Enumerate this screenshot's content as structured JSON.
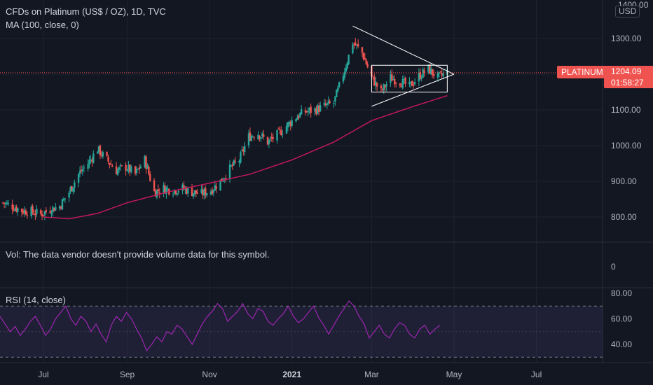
{
  "legend": {
    "title": "CFDs on Platinum (US$ / OZ), 1D, TVC",
    "ma": "MA (100, close, 0)",
    "volume_note": "Vol: The data vendor doesn't provide volume data for this symbol.",
    "rsi": "RSI (14, close)"
  },
  "price_axis": {
    "top_tick": "1400.00",
    "unit": "USD",
    "ticks": [
      "1300.00",
      "1200.00",
      "1100.00",
      "1000.00",
      "900.00",
      "800.00"
    ]
  },
  "current": {
    "symbol": "PLATINUM",
    "price": "1204.09",
    "countdown": "01:58:27"
  },
  "volume_axis": {
    "ticks": [
      "0"
    ]
  },
  "rsi_axis": {
    "ticks": [
      "80.00",
      "60.00",
      "40.00"
    ]
  },
  "time_axis": {
    "ticks": [
      "Jul",
      "Sep",
      "Nov",
      "2021",
      "Mar",
      "May",
      "Jul"
    ],
    "bold": "2021"
  },
  "colors": {
    "background": "#131722",
    "up": "#26a69a",
    "down": "#ef5350",
    "ma": "#c2185b",
    "rsi": "#9c27b0",
    "last_price_line": "#ef5350"
  },
  "chart_data": [
    {
      "type": "candlestick",
      "title": "CFDs on Platinum (US$ / OZ), 1D, TVC",
      "ylim": [
        760,
        1400
      ],
      "price_ticks": [
        800,
        900,
        1000,
        1100,
        1200,
        1300
      ],
      "x_ticks": [
        "Jul",
        "Sep",
        "Nov",
        "2021",
        "Mar",
        "May",
        "Jul"
      ],
      "last_price": 1204.09,
      "close_path": [
        [
          "2020-06-01",
          840
        ],
        [
          "2020-06-08",
          830
        ],
        [
          "2020-06-15",
          818
        ],
        [
          "2020-06-22",
          815
        ],
        [
          "2020-06-29",
          808
        ],
        [
          "2020-07-06",
          822
        ],
        [
          "2020-07-13",
          830
        ],
        [
          "2020-07-20",
          870
        ],
        [
          "2020-07-27",
          920
        ],
        [
          "2020-08-03",
          950
        ],
        [
          "2020-08-10",
          990
        ],
        [
          "2020-08-17",
          960
        ],
        [
          "2020-08-24",
          930
        ],
        [
          "2020-08-31",
          940
        ],
        [
          "2020-09-07",
          920
        ],
        [
          "2020-09-14",
          960
        ],
        [
          "2020-09-21",
          870
        ],
        [
          "2020-09-28",
          880
        ],
        [
          "2020-10-05",
          875
        ],
        [
          "2020-10-12",
          880
        ],
        [
          "2020-10-19",
          870
        ],
        [
          "2020-10-26",
          865
        ],
        [
          "2020-11-02",
          875
        ],
        [
          "2020-11-09",
          900
        ],
        [
          "2020-11-16",
          935
        ],
        [
          "2020-11-23",
          960
        ],
        [
          "2020-11-30",
          1025
        ],
        [
          "2020-12-07",
          1035
        ],
        [
          "2020-12-14",
          1010
        ],
        [
          "2020-12-21",
          1030
        ],
        [
          "2021-01-04",
          1080
        ],
        [
          "2021-01-11",
          1095
        ],
        [
          "2021-01-18",
          1100
        ],
        [
          "2021-01-25",
          1110
        ],
        [
          "2021-02-01",
          1120
        ],
        [
          "2021-02-08",
          1200
        ],
        [
          "2021-02-15",
          1290
        ],
        [
          "2021-02-22",
          1260
        ],
        [
          "2021-03-01",
          1190
        ],
        [
          "2021-03-08",
          1150
        ],
        [
          "2021-03-15",
          1190
        ],
        [
          "2021-03-22",
          1180
        ],
        [
          "2021-03-29",
          1165
        ],
        [
          "2021-04-05",
          1195
        ],
        [
          "2021-04-12",
          1215
        ],
        [
          "2021-04-19",
          1190
        ],
        [
          "2021-04-26",
          1204.09
        ]
      ],
      "ma": {
        "name": "MA (100, close, 0)",
        "points": [
          [
            "2020-07-01",
            800
          ],
          [
            "2020-07-20",
            795
          ],
          [
            "2020-08-10",
            810
          ],
          [
            "2020-09-01",
            840
          ],
          [
            "2020-10-01",
            870
          ],
          [
            "2020-11-01",
            895
          ],
          [
            "2020-12-01",
            920
          ],
          [
            "2021-01-01",
            960
          ],
          [
            "2021-02-01",
            1010
          ],
          [
            "2021-03-01",
            1070
          ],
          [
            "2021-04-01",
            1110
          ],
          [
            "2021-04-26",
            1140
          ]
        ]
      },
      "triangle": {
        "apex": [
          "2021-05-01",
          1200
        ],
        "upper_start": [
          "2021-02-15",
          1335
        ],
        "lower_start": [
          "2021-03-01",
          1110
        ]
      },
      "rectangle": {
        "from": "2021-03-01",
        "to": "2021-04-26",
        "top": 1225,
        "bottom": 1150
      }
    },
    {
      "type": "line",
      "title": "RSI (14, close)",
      "ylim": [
        28,
        82
      ],
      "bands": [
        70,
        30
      ],
      "ticks": [
        80,
        60,
        40
      ],
      "values": [
        62,
        56,
        50,
        54,
        47,
        52,
        58,
        62,
        55,
        47,
        52,
        60,
        65,
        70,
        60,
        55,
        62,
        58,
        50,
        56,
        48,
        42,
        55,
        62,
        58,
        65,
        60,
        52,
        45,
        35,
        40,
        46,
        42,
        50,
        48,
        55,
        52,
        46,
        40,
        48,
        56,
        62,
        66,
        72,
        68,
        58,
        62,
        66,
        72,
        64,
        60,
        68,
        66,
        58,
        55,
        60,
        64,
        70,
        62,
        57,
        60,
        65,
        70,
        61,
        55,
        48,
        55,
        62,
        68,
        74,
        70,
        62,
        56,
        45,
        50,
        55,
        48,
        45,
        52,
        57,
        55,
        48,
        45,
        52,
        55,
        48,
        52,
        55
      ]
    }
  ]
}
